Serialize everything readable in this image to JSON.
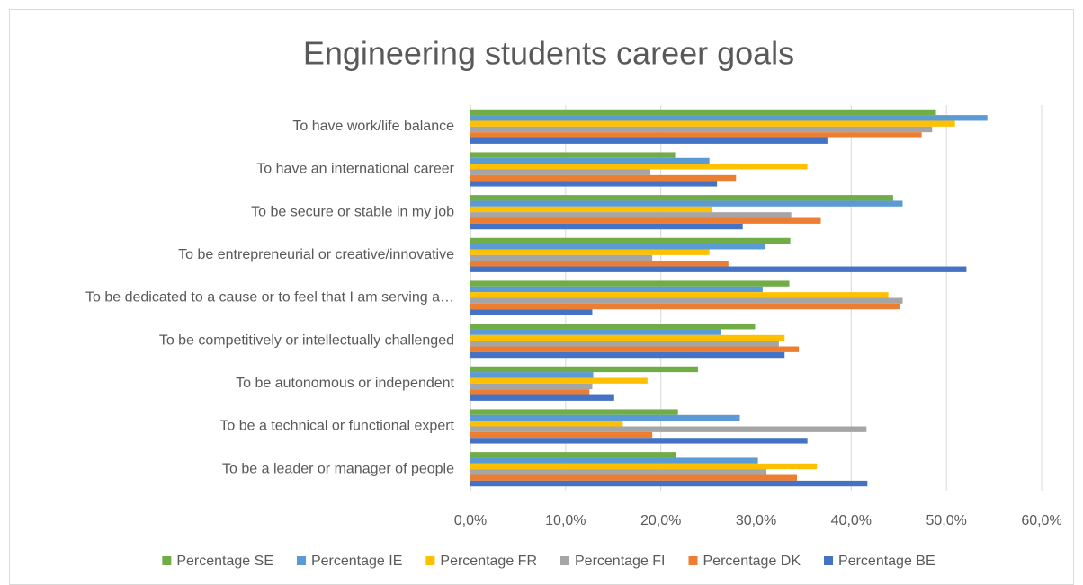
{
  "chart_data": {
    "type": "barh",
    "title": "Engineering students career goals",
    "categories": [
      "To have work/life balance",
      "To have an international career",
      "To be secure or stable in my job",
      "To be entrepreneurial or creative/innovative",
      "To be dedicated to a cause or to feel that I am serving a…",
      "To be competitively or intellectually challenged",
      "To be autonomous or independent",
      "To be a technical or functional expert",
      "To be a leader or manager of people"
    ],
    "series": [
      {
        "name": "Percentage SE",
        "color": "#70ad47",
        "values": [
          48.9,
          21.5,
          44.4,
          33.6,
          33.5,
          29.9,
          23.9,
          21.8,
          21.6
        ]
      },
      {
        "name": "Percentage IE",
        "color": "#5b9bd5",
        "values": [
          54.3,
          25.1,
          45.4,
          31.0,
          30.7,
          26.3,
          12.9,
          28.3,
          30.2
        ]
      },
      {
        "name": "Percentage FR",
        "color": "#ffc000",
        "values": [
          50.9,
          35.4,
          25.4,
          25.1,
          43.9,
          33.0,
          18.6,
          16.0,
          36.4
        ]
      },
      {
        "name": "Percentage FI",
        "color": "#a5a5a5",
        "values": [
          48.5,
          18.9,
          33.7,
          19.1,
          45.4,
          32.4,
          12.8,
          41.6,
          31.1
        ]
      },
      {
        "name": "Percentage DK",
        "color": "#ed7d31",
        "values": [
          47.4,
          27.9,
          36.8,
          27.1,
          45.1,
          34.5,
          12.5,
          19.1,
          34.3
        ]
      },
      {
        "name": "Percentage BE",
        "color": "#4472c4",
        "values": [
          37.5,
          25.9,
          28.6,
          52.1,
          12.8,
          33.0,
          15.1,
          35.4,
          41.7
        ]
      }
    ],
    "xlim": [
      0,
      60
    ],
    "xticks": [
      {
        "value": 0,
        "label": "0,0%"
      },
      {
        "value": 10,
        "label": "10,0%"
      },
      {
        "value": 20,
        "label": "20,0%"
      },
      {
        "value": 30,
        "label": "30,0%"
      },
      {
        "value": 40,
        "label": "40,0%"
      },
      {
        "value": 50,
        "label": "50,0%"
      },
      {
        "value": 60,
        "label": "60,0%"
      }
    ],
    "grid": true,
    "legend": "bottom"
  }
}
